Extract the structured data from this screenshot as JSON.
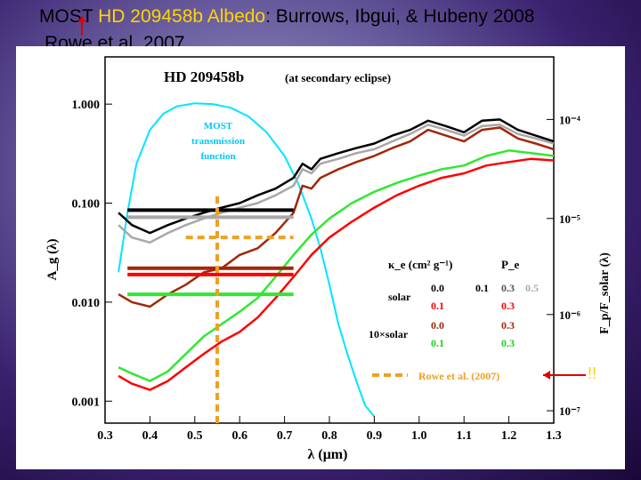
{
  "slide": {
    "title_part1": "MOST",
    "title_part2": " HD 209458b Albedo",
    "title_part3": ": Burrows, Ibgui, & Hubeny 2008",
    "subtitle": "Rowe et al. 2007",
    "annotation": "!!"
  },
  "chart_data": {
    "type": "line",
    "title": "HD 209458b",
    "title_note": "(at secondary eclipse)",
    "xlabel": "λ (μm)",
    "ylabel": "A_g (λ)",
    "ylabel_right": "F_p/F_solar (λ)",
    "xlim": [
      0.3,
      1.3
    ],
    "ylim": [
      0.0006,
      3.0
    ],
    "yscale": "log",
    "x_ticks": [
      "0.3",
      "0.4",
      "0.5",
      "0.6",
      "0.7",
      "0.8",
      "0.9",
      "1.0",
      "1.1",
      "1.2",
      "1.3"
    ],
    "y_ticks_left": [
      "1.000",
      "0.100",
      "0.010",
      "0.001"
    ],
    "y_ticks_right": [
      "10⁻⁴",
      "10⁻⁵",
      "10⁻⁶",
      "10⁻⁷"
    ],
    "colors": {
      "most": "#00e5ff",
      "black": "#000000",
      "gray": "#a8a8a8",
      "darkred": "#a02808",
      "red": "#ff0000",
      "green": "#30e830",
      "rowe": "#f0a020"
    },
    "most_label": [
      "MOST",
      "transmission",
      "function"
    ],
    "legend": {
      "header_kappa": "κ_e (cm² g⁻¹)",
      "header_p": "P_e",
      "solar_label": "solar",
      "tenx_label": "10×solar",
      "solar_black": [
        "0.0",
        "0.1",
        "0.3",
        "0.5"
      ],
      "solar_red": [
        "0.1",
        "0.3"
      ],
      "tenx_red": [
        "0.0",
        "0.3"
      ],
      "tenx_green": [
        "0.1",
        "0.3"
      ],
      "rowe": "Rowe et al. (2007)"
    },
    "series": [
      {
        "color_key": "most",
        "x": [
          0.33,
          0.35,
          0.37,
          0.4,
          0.43,
          0.46,
          0.5,
          0.54,
          0.58,
          0.62,
          0.66,
          0.7,
          0.73,
          0.76,
          0.78,
          0.8,
          0.82,
          0.84,
          0.86,
          0.88,
          0.9
        ],
        "y": [
          0.02,
          0.08,
          0.25,
          0.55,
          0.8,
          0.95,
          1.02,
          1.0,
          0.92,
          0.75,
          0.52,
          0.3,
          0.16,
          0.07,
          0.035,
          0.015,
          0.006,
          0.003,
          0.0016,
          0.0009,
          0.0007
        ]
      },
      {
        "color_key": "gray",
        "x": [
          0.33,
          0.36,
          0.4,
          0.44,
          0.48,
          0.52,
          0.56,
          0.6,
          0.64,
          0.68,
          0.72,
          0.74,
          0.76,
          0.78,
          0.82,
          0.86,
          0.9,
          0.94,
          0.98,
          1.02,
          1.06,
          1.1,
          1.14,
          1.18,
          1.22,
          1.26,
          1.3
        ],
        "y": [
          0.06,
          0.045,
          0.04,
          0.05,
          0.06,
          0.07,
          0.08,
          0.09,
          0.1,
          0.12,
          0.15,
          0.22,
          0.2,
          0.25,
          0.28,
          0.32,
          0.35,
          0.42,
          0.5,
          0.62,
          0.55,
          0.48,
          0.6,
          0.62,
          0.5,
          0.45,
          0.4
        ]
      },
      {
        "color_key": "black",
        "x": [
          0.33,
          0.36,
          0.4,
          0.44,
          0.48,
          0.52,
          0.56,
          0.6,
          0.64,
          0.68,
          0.72,
          0.74,
          0.76,
          0.78,
          0.82,
          0.86,
          0.9,
          0.94,
          0.98,
          1.02,
          1.06,
          1.1,
          1.14,
          1.18,
          1.22,
          1.26,
          1.3
        ],
        "y": [
          0.08,
          0.06,
          0.05,
          0.06,
          0.07,
          0.08,
          0.09,
          0.1,
          0.12,
          0.14,
          0.18,
          0.25,
          0.22,
          0.28,
          0.32,
          0.36,
          0.4,
          0.48,
          0.55,
          0.68,
          0.6,
          0.52,
          0.68,
          0.7,
          0.55,
          0.48,
          0.42
        ]
      },
      {
        "color_key": "darkred",
        "x": [
          0.33,
          0.36,
          0.4,
          0.44,
          0.48,
          0.52,
          0.56,
          0.6,
          0.64,
          0.68,
          0.72,
          0.74,
          0.76,
          0.78,
          0.82,
          0.86,
          0.9,
          0.94,
          0.98,
          1.02,
          1.06,
          1.1,
          1.14,
          1.18,
          1.22,
          1.26,
          1.3
        ],
        "y": [
          0.012,
          0.01,
          0.009,
          0.012,
          0.015,
          0.02,
          0.022,
          0.03,
          0.035,
          0.05,
          0.08,
          0.15,
          0.14,
          0.18,
          0.22,
          0.26,
          0.3,
          0.36,
          0.42,
          0.55,
          0.48,
          0.42,
          0.55,
          0.58,
          0.45,
          0.4,
          0.35
        ]
      },
      {
        "color_key": "red",
        "x": [
          0.33,
          0.36,
          0.4,
          0.44,
          0.48,
          0.52,
          0.56,
          0.6,
          0.64,
          0.68,
          0.72,
          0.76,
          0.8,
          0.85,
          0.9,
          0.95,
          1.0,
          1.05,
          1.1,
          1.15,
          1.2,
          1.25,
          1.3
        ],
        "y": [
          0.0018,
          0.0015,
          0.0013,
          0.0016,
          0.0022,
          0.003,
          0.004,
          0.005,
          0.007,
          0.011,
          0.018,
          0.03,
          0.045,
          0.065,
          0.09,
          0.12,
          0.15,
          0.18,
          0.2,
          0.24,
          0.26,
          0.28,
          0.27
        ]
      },
      {
        "color_key": "green",
        "x": [
          0.33,
          0.36,
          0.4,
          0.44,
          0.48,
          0.52,
          0.56,
          0.6,
          0.64,
          0.68,
          0.72,
          0.76,
          0.8,
          0.85,
          0.9,
          0.95,
          1.0,
          1.05,
          1.1,
          1.15,
          1.2,
          1.25,
          1.3
        ],
        "y": [
          0.0022,
          0.0019,
          0.0016,
          0.002,
          0.003,
          0.0045,
          0.006,
          0.008,
          0.011,
          0.018,
          0.03,
          0.048,
          0.07,
          0.1,
          0.13,
          0.16,
          0.19,
          0.22,
          0.24,
          0.3,
          0.34,
          0.32,
          0.3
        ]
      }
    ],
    "bands": [
      {
        "color_key": "black",
        "x0": 0.35,
        "x1": 0.72,
        "y": 0.085
      },
      {
        "color_key": "gray",
        "x0": 0.35,
        "x1": 0.72,
        "y": 0.072
      },
      {
        "color_key": "darkred",
        "x0": 0.35,
        "x1": 0.72,
        "y": 0.022
      },
      {
        "color_key": "red",
        "x0": 0.35,
        "x1": 0.72,
        "y": 0.019
      },
      {
        "color_key": "green",
        "x0": 0.35,
        "x1": 0.72,
        "y": 0.012
      },
      {
        "color_key": "rowe",
        "x0": 0.48,
        "x1": 0.72,
        "y": 0.045
      }
    ],
    "rowe_band_vertical": {
      "x": 0.55,
      "y_from": 0.0006,
      "y_to": 0.12
    }
  }
}
